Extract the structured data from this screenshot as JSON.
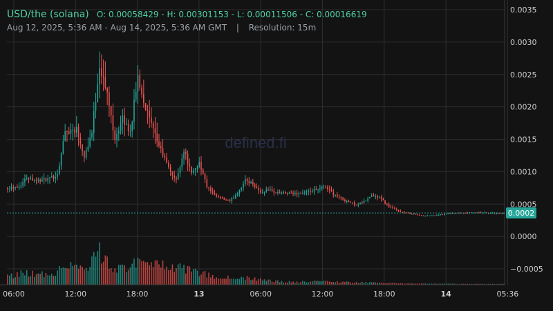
{
  "header": {
    "title": "USD/the (solana)",
    "ohlc": "O: 0.00058429 - H: 0.00301153 - L: 0.00011506 - C: 0.00016619",
    "range": "Aug 12, 2025, 5:36 AM - Aug 14, 2025, 5:36 AM GMT",
    "separator": "|",
    "resolution": "Resolution: 15m"
  },
  "watermark": "defined.fi",
  "colors": {
    "up": "#26a69a",
    "down": "#ef5350",
    "background": "#131313",
    "grid": "#2e2e2e",
    "axis_text": "#d0d0d0",
    "last_price_tag": "#26a69a"
  },
  "chart_data": {
    "type": "candlestick",
    "x_ticks": [
      "06:00",
      "12:00",
      "18:00",
      "13",
      "06:00",
      "12:00",
      "18:00",
      "14",
      "05:36"
    ],
    "x_ticks_bold": [
      false,
      false,
      false,
      true,
      false,
      false,
      false,
      true,
      false
    ],
    "y_ticks": [
      "0.0035",
      "0.0030",
      "0.0025",
      "0.0020",
      "0.0015",
      "0.0010",
      "0.0005",
      "0.0000",
      "−0.0005"
    ],
    "ylim": [
      -0.00075,
      0.0035
    ],
    "last_price": 0.00016619,
    "last_price_label": "0.0002",
    "price_anchors": [
      [
        0,
        0.00058
      ],
      [
        6,
        0.0006
      ],
      [
        10,
        0.00075
      ],
      [
        16,
        0.0007
      ],
      [
        22,
        0.00072
      ],
      [
        26,
        0.0008
      ],
      [
        30,
        0.0015
      ],
      [
        36,
        0.00155
      ],
      [
        40,
        0.0011
      ],
      [
        44,
        0.0015
      ],
      [
        48,
        0.0026
      ],
      [
        52,
        0.0021
      ],
      [
        56,
        0.0014
      ],
      [
        60,
        0.0017
      ],
      [
        64,
        0.0015
      ],
      [
        68,
        0.0024
      ],
      [
        72,
        0.0019
      ],
      [
        76,
        0.0015
      ],
      [
        80,
        0.0012
      ],
      [
        84,
        0.0009
      ],
      [
        88,
        0.0007
      ],
      [
        92,
        0.0012
      ],
      [
        96,
        0.0008
      ],
      [
        100,
        0.001
      ],
      [
        104,
        0.0006
      ],
      [
        108,
        0.00045
      ],
      [
        112,
        0.0004
      ],
      [
        116,
        0.00035
      ],
      [
        120,
        0.0005
      ],
      [
        124,
        0.0007
      ],
      [
        128,
        0.00065
      ],
      [
        132,
        0.0005
      ],
      [
        136,
        0.00055
      ],
      [
        140,
        0.0005
      ],
      [
        148,
        0.00048
      ],
      [
        156,
        0.0005
      ],
      [
        162,
        0.00055
      ],
      [
        166,
        0.0006
      ],
      [
        170,
        0.00048
      ],
      [
        174,
        0.0004
      ],
      [
        178,
        0.00035
      ],
      [
        182,
        0.0003
      ],
      [
        186,
        0.00035
      ],
      [
        190,
        0.00045
      ],
      [
        194,
        0.00042
      ],
      [
        198,
        0.0003
      ],
      [
        202,
        0.00022
      ],
      [
        206,
        0.00018
      ],
      [
        212,
        0.00015
      ],
      [
        216,
        0.00012
      ],
      [
        224,
        0.00013
      ],
      [
        232,
        0.00016
      ],
      [
        240,
        0.00017
      ],
      [
        250,
        0.00017
      ],
      [
        258,
        0.00016
      ]
    ],
    "volume_anchors": [
      [
        0,
        0.25
      ],
      [
        10,
        0.35
      ],
      [
        20,
        0.3
      ],
      [
        26,
        0.4
      ],
      [
        30,
        0.7
      ],
      [
        36,
        0.55
      ],
      [
        40,
        0.45
      ],
      [
        46,
        0.85
      ],
      [
        48,
        1.0
      ],
      [
        52,
        0.65
      ],
      [
        56,
        0.45
      ],
      [
        62,
        0.55
      ],
      [
        66,
        0.7
      ],
      [
        70,
        0.6
      ],
      [
        76,
        0.55
      ],
      [
        80,
        0.55
      ],
      [
        86,
        0.45
      ],
      [
        92,
        0.5
      ],
      [
        100,
        0.35
      ],
      [
        108,
        0.25
      ],
      [
        116,
        0.2
      ],
      [
        124,
        0.2
      ],
      [
        132,
        0.15
      ],
      [
        140,
        0.1
      ],
      [
        150,
        0.08
      ],
      [
        160,
        0.1
      ],
      [
        170,
        0.09
      ],
      [
        180,
        0.07
      ],
      [
        190,
        0.06
      ],
      [
        200,
        0.05
      ],
      [
        210,
        0.04
      ],
      [
        220,
        0.03
      ],
      [
        230,
        0.03
      ],
      [
        240,
        0.02
      ],
      [
        258,
        0.02
      ]
    ]
  }
}
